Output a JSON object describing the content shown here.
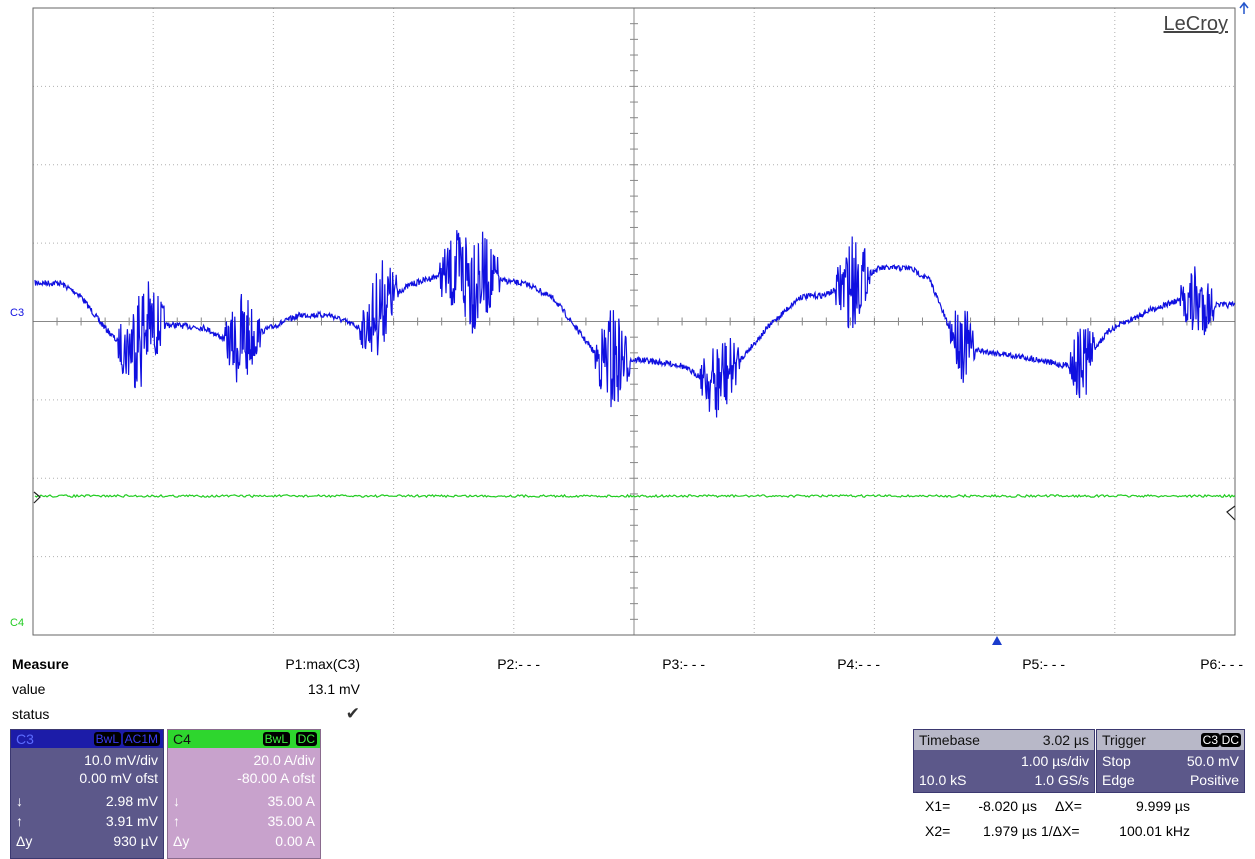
{
  "brand": "LeCroy",
  "trace_labels": {
    "c3": "C3",
    "c4": "C4"
  },
  "colors": {
    "c3": "#1010e0",
    "c4": "#22cc22",
    "grid": "#b0b0b0"
  },
  "measure": {
    "title": "Measure",
    "row_value": "value",
    "row_status": "status",
    "params": [
      {
        "label": "P1:max(C3)",
        "value": "13.1 mV",
        "status": "✔"
      },
      {
        "label": "P2:- - -"
      },
      {
        "label": "P3:- - -"
      },
      {
        "label": "P4:- - -"
      },
      {
        "label": "P5:- - -"
      },
      {
        "label": "P6:- - -"
      }
    ]
  },
  "channels": {
    "c3": {
      "name": "C3",
      "bw": "BwL",
      "coupling": "AC1M",
      "scale": "10.0 mV/div",
      "offset": "0.00 mV ofst",
      "cursor_low_sym": "↓",
      "cursor_low": "2.98 mV",
      "cursor_high_sym": "↑",
      "cursor_high": "3.91 mV",
      "delta_sym": "Δy",
      "delta": "930 µV"
    },
    "c4": {
      "name": "C4",
      "bw": "BwL",
      "coupling": "DC",
      "scale": "20.0 A/div",
      "offset": "-80.00 A ofst",
      "cursor_low_sym": "↓",
      "cursor_low": "35.00 A",
      "cursor_high_sym": "↑",
      "cursor_high": "35.00 A",
      "delta_sym": "Δy",
      "delta": "0.00 A"
    }
  },
  "timebase": {
    "label": "Timebase",
    "delay": "3.02 µs",
    "scale": "1.00 µs/div",
    "samples": "10.0 kS",
    "rate": "1.0 GS/s"
  },
  "trigger": {
    "label": "Trigger",
    "source": "C3",
    "coupling": "DC",
    "mode": "Stop",
    "level": "50.0 mV",
    "type": "Edge",
    "slope": "Positive"
  },
  "cursors": {
    "x1_label": "X1=",
    "x1": "-8.020 µs",
    "dx_label": "ΔX=",
    "dx": "9.999 µs",
    "x2_label": "X2=",
    "x2": "1.979 µs",
    "inv_dx_label": "1/ΔX=",
    "inv_dx": "100.01 kHz"
  }
}
